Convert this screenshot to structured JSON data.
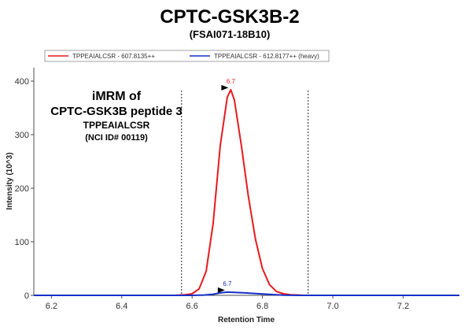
{
  "chart_data": {
    "type": "line",
    "title": "CPTC-GSK3B-2",
    "subtitle": "(FSAI071-18B10)",
    "xlabel": "Retention Time",
    "ylabel": "Intensity (10^3)",
    "xlim": [
      6.15,
      7.36
    ],
    "ylim": [
      0,
      420
    ],
    "x_ticks": [
      6.2,
      6.4,
      6.6,
      6.8,
      7.0,
      7.2
    ],
    "x_tick_labels": [
      "6.2",
      "6.4",
      "6.6",
      "6.8",
      "7.0",
      "7.2"
    ],
    "y_ticks": [
      0,
      100,
      200,
      300,
      400
    ],
    "y_tick_labels": [
      "0",
      "100",
      "200",
      "300",
      "400"
    ],
    "legend_position": "top",
    "grid": false,
    "integration_bounds": [
      6.57,
      6.93
    ],
    "series": [
      {
        "name": "TPPEAIALCSR - 607.8135++",
        "color": "#e8191e",
        "peak_label": "6.7",
        "peak": [
          6.71,
          384
        ],
        "x": [
          6.15,
          6.55,
          6.58,
          6.6,
          6.62,
          6.64,
          6.66,
          6.68,
          6.7,
          6.71,
          6.72,
          6.74,
          6.76,
          6.78,
          6.8,
          6.82,
          6.84,
          6.86,
          6.88,
          6.92,
          7.36
        ],
        "y": [
          0,
          0,
          1,
          3,
          12,
          45,
          135,
          280,
          370,
          384,
          365,
          280,
          185,
          105,
          50,
          20,
          7,
          3,
          1,
          0,
          0
        ]
      },
      {
        "name": "TPPEAIALCSR - 612.8177++ (heavy)",
        "color": "#1530c8",
        "peak_label": "6.7",
        "peak": [
          6.7,
          6
        ],
        "x": [
          6.15,
          6.6,
          6.63,
          6.66,
          6.68,
          6.7,
          6.72,
          6.75,
          6.8,
          6.86,
          6.9,
          7.36
        ],
        "y": [
          0,
          0,
          0.5,
          2,
          4.5,
          6,
          5.5,
          4.5,
          2.5,
          0.5,
          0,
          0
        ]
      }
    ],
    "annotation": {
      "line1": "iMRM of",
      "line2": "CPTC-GSK3B peptide 3",
      "line3": "TPPEAIALCSR",
      "line4": "(NCI ID# 00119)"
    }
  }
}
